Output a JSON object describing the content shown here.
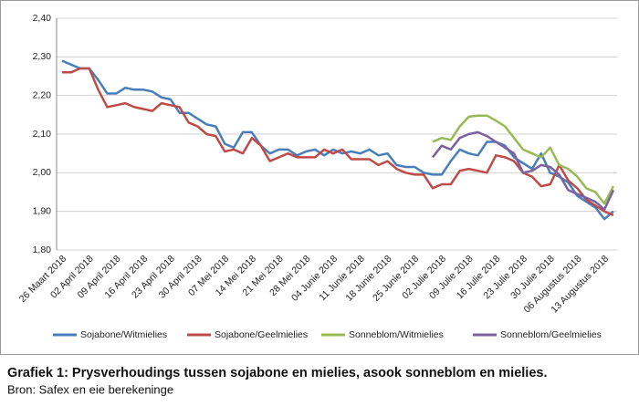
{
  "chart_data": {
    "type": "line",
    "title": "Grafiek 1: Prysverhoudings tussen sojabone en mielies, asook sonneblom en mielies.",
    "subtitle": "Bron: Safex en eie berekeninge",
    "categories": [
      "26 Maart 2018",
      null,
      null,
      "02 April 2018",
      null,
      null,
      "09 April 2018",
      null,
      null,
      "16 April 2018",
      null,
      null,
      "23 April 2018",
      null,
      null,
      "30 April 2018",
      null,
      null,
      "07 Mei 2018",
      null,
      null,
      "14 Mei 2018",
      null,
      null,
      "21 Mei 2018",
      null,
      null,
      "28 Mei 2018",
      null,
      null,
      "04 Junie 2018",
      null,
      null,
      "11 Junie 2018",
      null,
      null,
      "18 Junie 2018",
      null,
      null,
      "25 Junie 2018",
      null,
      null,
      "02 Julie 2018",
      null,
      null,
      "09 Julie 2018",
      null,
      null,
      "16 Julie 2018",
      null,
      null,
      "23 Julie 2018",
      null,
      null,
      "30 Julie 2018",
      null,
      null,
      "06 Augustus 2018",
      null,
      null,
      "13 Augustus 2018",
      null
    ],
    "series": [
      {
        "name": "Sojabone/Witmielies",
        "color": "#4a7ebb",
        "values": [
          2.29,
          2.28,
          2.27,
          2.27,
          2.24,
          2.205,
          2.205,
          2.22,
          2.215,
          2.215,
          2.21,
          2.195,
          2.19,
          2.155,
          2.155,
          2.14,
          2.125,
          2.12,
          2.075,
          2.065,
          2.105,
          2.105,
          2.07,
          2.05,
          2.06,
          2.06,
          2.045,
          2.055,
          2.06,
          2.045,
          2.06,
          2.05,
          2.055,
          2.05,
          2.06,
          2.045,
          2.05,
          2.02,
          2.015,
          2.015,
          2.0,
          1.995,
          1.995,
          2.03,
          2.06,
          2.05,
          2.045,
          2.08,
          2.08,
          2.07,
          2.04,
          2.025,
          2.01,
          2.05,
          2.0,
          1.99,
          1.975,
          1.94,
          1.925,
          1.91,
          1.88,
          1.9
        ]
      },
      {
        "name": "Sojabone/Geelmielies",
        "color": "#be4b48",
        "values": [
          2.26,
          2.26,
          2.27,
          2.27,
          2.215,
          2.17,
          2.175,
          2.18,
          2.17,
          2.165,
          2.16,
          2.18,
          2.175,
          2.17,
          2.13,
          2.12,
          2.1,
          2.095,
          2.055,
          2.06,
          2.05,
          2.09,
          2.07,
          2.03,
          2.04,
          2.05,
          2.04,
          2.04,
          2.04,
          2.06,
          2.05,
          2.06,
          2.035,
          2.035,
          2.035,
          2.02,
          2.03,
          2.01,
          2.0,
          1.995,
          1.995,
          1.96,
          1.97,
          1.97,
          2.005,
          2.01,
          2.005,
          2.0,
          2.045,
          2.04,
          2.03,
          2.0,
          1.99,
          1.965,
          1.97,
          2.02,
          1.98,
          1.96,
          1.93,
          1.915,
          1.9,
          1.89
        ]
      },
      {
        "name": "Sonneblom/Witmielies",
        "color": "#98b954",
        "values": [
          null,
          null,
          null,
          null,
          null,
          null,
          null,
          null,
          null,
          null,
          null,
          null,
          null,
          null,
          null,
          null,
          null,
          null,
          null,
          null,
          null,
          null,
          null,
          null,
          null,
          null,
          null,
          null,
          null,
          null,
          null,
          null,
          null,
          null,
          null,
          null,
          null,
          null,
          null,
          null,
          null,
          2.08,
          2.09,
          2.085,
          2.12,
          2.145,
          2.148,
          2.148,
          2.135,
          2.12,
          2.09,
          2.06,
          2.05,
          2.04,
          2.065,
          2.02,
          2.01,
          1.99,
          1.96,
          1.95,
          1.92,
          1.965
        ]
      },
      {
        "name": "Sonneblom/Geelmielies",
        "color": "#7d60a0",
        "values": [
          null,
          null,
          null,
          null,
          null,
          null,
          null,
          null,
          null,
          null,
          null,
          null,
          null,
          null,
          null,
          null,
          null,
          null,
          null,
          null,
          null,
          null,
          null,
          null,
          null,
          null,
          null,
          null,
          null,
          null,
          null,
          null,
          null,
          null,
          null,
          null,
          null,
          null,
          null,
          null,
          null,
          2.04,
          2.07,
          2.06,
          2.09,
          2.1,
          2.105,
          2.095,
          2.08,
          2.065,
          2.05,
          2.0,
          2.005,
          2.02,
          2.015,
          1.995,
          1.955,
          1.945,
          1.935,
          1.925,
          1.905,
          1.955
        ]
      }
    ],
    "ylim": [
      1.8,
      2.4
    ],
    "yticks": [
      {
        "value": 1.8,
        "label": "1,80"
      },
      {
        "value": 1.9,
        "label": "1,90"
      },
      {
        "value": 2.0,
        "label": "2,00"
      },
      {
        "value": 2.1,
        "label": "2,10"
      },
      {
        "value": 2.2,
        "label": "2,20"
      },
      {
        "value": 2.3,
        "label": "2,30"
      },
      {
        "value": 2.4,
        "label": "2,40"
      }
    ],
    "grid": true
  }
}
